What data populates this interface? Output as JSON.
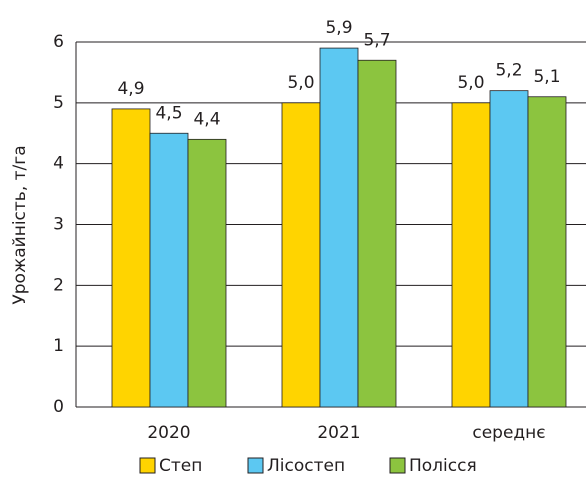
{
  "chart_data": {
    "type": "bar",
    "y_label": "Урожайність, т/га",
    "categories": [
      "2020",
      "2021",
      "середнє"
    ],
    "series": [
      {
        "name": "Степ",
        "color": "#ffd400",
        "values": [
          4.9,
          5.0,
          5.0
        ],
        "value_labels": [
          "4,9",
          "5,0",
          "5,0"
        ]
      },
      {
        "name": "Лісостеп",
        "color": "#5cc8f2",
        "values": [
          4.5,
          5.9,
          5.2
        ],
        "value_labels": [
          "4,5",
          "5,9",
          "5,2"
        ]
      },
      {
        "name": "Полісся",
        "color": "#8cc43f",
        "values": [
          4.4,
          5.7,
          5.1
        ],
        "value_labels": [
          "4,4",
          "5,7",
          "5,1"
        ]
      }
    ],
    "ylim": [
      0,
      6
    ],
    "yticks": [
      0,
      1,
      2,
      3,
      4,
      5,
      6
    ],
    "grid": true,
    "legend": "bottom"
  }
}
